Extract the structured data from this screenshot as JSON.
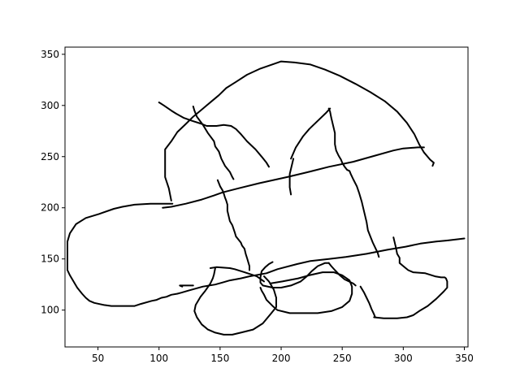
{
  "chart_data": {
    "type": "line",
    "title": "",
    "xlabel": "",
    "ylabel": "",
    "xlim": [
      23,
      353
    ],
    "ylim": [
      64,
      357
    ],
    "xticks": [
      50,
      100,
      150,
      200,
      250,
      300,
      350
    ],
    "yticks": [
      100,
      150,
      200,
      250,
      300,
      350
    ],
    "xtick_labels": [
      "50",
      "100",
      "150",
      "200",
      "250",
      "300",
      "350"
    ],
    "ytick_labels": [
      "100",
      "150",
      "200",
      "250",
      "300",
      "350"
    ],
    "grid": false,
    "line_color": "#000000",
    "series": [
      {
        "points": [
          [
            110,
            207
          ],
          [
            108,
            219
          ],
          [
            105,
            230
          ],
          [
            105,
            243
          ],
          [
            105,
            257
          ],
          [
            110,
            265
          ],
          [
            115,
            274
          ],
          [
            122,
            282
          ],
          [
            128,
            289
          ],
          [
            136,
            297
          ],
          [
            143,
            304
          ],
          [
            149,
            310
          ],
          [
            155,
            317
          ],
          [
            163,
            323
          ],
          [
            172,
            330
          ],
          [
            183,
            336
          ],
          [
            195,
            341
          ],
          [
            200,
            343
          ],
          [
            211,
            342
          ],
          [
            224,
            340
          ],
          [
            236,
            335
          ],
          [
            248,
            329
          ],
          [
            261,
            321
          ],
          [
            273,
            313
          ],
          [
            285,
            304
          ],
          [
            295,
            294
          ],
          [
            303,
            283
          ],
          [
            309,
            272
          ],
          [
            313,
            262
          ],
          [
            317,
            254
          ],
          [
            322,
            247
          ],
          [
            325,
            244
          ],
          [
            324,
            241
          ]
        ]
      },
      {
        "points": [
          [
            103,
            200
          ],
          [
            110,
            201
          ],
          [
            122,
            204
          ],
          [
            135,
            208
          ],
          [
            145,
            212
          ],
          [
            152,
            215
          ],
          [
            165,
            219
          ],
          [
            182,
            224
          ],
          [
            205,
            230
          ],
          [
            219,
            234
          ],
          [
            239,
            240
          ],
          [
            259,
            245
          ],
          [
            277,
            251
          ],
          [
            292,
            256
          ],
          [
            300,
            258
          ],
          [
            312,
            259
          ],
          [
            317,
            259
          ]
        ]
      },
      {
        "points": [
          [
            111,
            204
          ],
          [
            101,
            204
          ],
          [
            93,
            204
          ],
          [
            80,
            203
          ],
          [
            70,
            201
          ],
          [
            63,
            199
          ],
          [
            51,
            194
          ],
          [
            40,
            190
          ],
          [
            32,
            184
          ],
          [
            27,
            175
          ],
          [
            25,
            167
          ],
          [
            25,
            155
          ],
          [
            25,
            145
          ],
          [
            25,
            139
          ],
          [
            27,
            134
          ],
          [
            30,
            128
          ],
          [
            33,
            122
          ],
          [
            37,
            116
          ],
          [
            40,
            112
          ],
          [
            43,
            109
          ],
          [
            47,
            107
          ],
          [
            55,
            105
          ],
          [
            61,
            104
          ],
          [
            67,
            104
          ],
          [
            73,
            104
          ],
          [
            80,
            104
          ],
          [
            85,
            106
          ],
          [
            94,
            109
          ],
          [
            98,
            110
          ],
          [
            102,
            112
          ],
          [
            106,
            113
          ],
          [
            110,
            115
          ],
          [
            115,
            116
          ],
          [
            118,
            117
          ],
          [
            124,
            119
          ],
          [
            130,
            121
          ],
          [
            136,
            123
          ],
          [
            146,
            125
          ],
          [
            152,
            127
          ],
          [
            158,
            129
          ],
          [
            167,
            131
          ],
          [
            174,
            133
          ],
          [
            188,
            136
          ],
          [
            197,
            140
          ],
          [
            213,
            145
          ],
          [
            224,
            148
          ],
          [
            239,
            150
          ],
          [
            253,
            152
          ],
          [
            270,
            155
          ],
          [
            287,
            159
          ],
          [
            302,
            162
          ],
          [
            314,
            165
          ],
          [
            327,
            167
          ],
          [
            336,
            168
          ],
          [
            343,
            169
          ],
          [
            350,
            170
          ]
        ]
      },
      {
        "points": [
          [
            119,
            123
          ],
          [
            117,
            124
          ],
          [
            128,
            124
          ]
        ]
      },
      {
        "points": [
          [
            142,
            141
          ],
          [
            147,
            142
          ],
          [
            158,
            141
          ],
          [
            162,
            140
          ],
          [
            170,
            137
          ],
          [
            175,
            135
          ],
          [
            180,
            133
          ],
          [
            186,
            128
          ]
        ]
      },
      {
        "points": [
          [
            186,
            133
          ],
          [
            190,
            128
          ],
          [
            194,
            120
          ],
          [
            196,
            112
          ],
          [
            196,
            103
          ],
          [
            192,
            97
          ],
          [
            185,
            87
          ],
          [
            177,
            81
          ],
          [
            167,
            78
          ],
          [
            160,
            76
          ],
          [
            153,
            76
          ],
          [
            146,
            78
          ],
          [
            140,
            81
          ],
          [
            135,
            86
          ],
          [
            131,
            93
          ],
          [
            129,
            99
          ],
          [
            130,
            105
          ],
          [
            134,
            113
          ],
          [
            138,
            119
          ],
          [
            142,
            126
          ],
          [
            144,
            131
          ],
          [
            145,
            135
          ],
          [
            146,
            141
          ]
        ]
      },
      {
        "points": [
          [
            191,
            126
          ],
          [
            201,
            128
          ],
          [
            214,
            131
          ],
          [
            223,
            134
          ],
          [
            234,
            137
          ],
          [
            243,
            137
          ],
          [
            250,
            134
          ],
          [
            256,
            129
          ],
          [
            258,
            123
          ],
          [
            258,
            116
          ],
          [
            256,
            109
          ],
          [
            250,
            103
          ],
          [
            241,
            99
          ],
          [
            230,
            97
          ],
          [
            218,
            97
          ],
          [
            207,
            97
          ],
          [
            197,
            100
          ],
          [
            193,
            104
          ],
          [
            188,
            110
          ],
          [
            186,
            115
          ],
          [
            184,
            119
          ],
          [
            183,
            122
          ]
        ]
      },
      {
        "points": [
          [
            292,
            171
          ],
          [
            294,
            161
          ],
          [
            295,
            155
          ],
          [
            297,
            151
          ],
          [
            297,
            146
          ],
          [
            300,
            143
          ],
          [
            304,
            139
          ],
          [
            308,
            137
          ],
          [
            318,
            136
          ],
          [
            326,
            133
          ],
          [
            331,
            132
          ],
          [
            334,
            132
          ],
          [
            335,
            131
          ],
          [
            336,
            128
          ],
          [
            336,
            122
          ],
          [
            333,
            118
          ],
          [
            327,
            111
          ],
          [
            320,
            104
          ],
          [
            313,
            99
          ],
          [
            308,
            95
          ],
          [
            303,
            93
          ],
          [
            295,
            92
          ],
          [
            289,
            92
          ],
          [
            284,
            92
          ],
          [
            276,
            93
          ]
        ]
      },
      {
        "points": [
          [
            277,
            93
          ],
          [
            276,
            96
          ],
          [
            274,
            101
          ],
          [
            272,
            107
          ],
          [
            270,
            112
          ],
          [
            268,
            117
          ],
          [
            265,
            123
          ]
        ]
      },
      {
        "points": [
          [
            261,
            124
          ],
          [
            259,
            126
          ],
          [
            252,
            130
          ],
          [
            248,
            134
          ],
          [
            244,
            139
          ],
          [
            241,
            143
          ],
          [
            239,
            146
          ]
        ]
      },
      {
        "points": [
          [
            239,
            146
          ],
          [
            236,
            146
          ],
          [
            230,
            143
          ],
          [
            225,
            138
          ],
          [
            221,
            133
          ],
          [
            216,
            128
          ],
          [
            208,
            124
          ],
          [
            200,
            122
          ],
          [
            193,
            122
          ],
          [
            185,
            124
          ],
          [
            183,
            127
          ],
          [
            183,
            132
          ],
          [
            184,
            138
          ],
          [
            187,
            142
          ],
          [
            190,
            145
          ],
          [
            193,
            147
          ]
        ]
      },
      {
        "points": [
          [
            161,
            228
          ],
          [
            160,
            230
          ],
          [
            158,
            235
          ],
          [
            154,
            241
          ],
          [
            151,
            248
          ],
          [
            149,
            255
          ],
          [
            146,
            260
          ],
          [
            145,
            265
          ],
          [
            140,
            273
          ],
          [
            136,
            281
          ],
          [
            131,
            289
          ],
          [
            129,
            295
          ],
          [
            128,
            299
          ]
        ]
      },
      {
        "points": [
          [
            100,
            303
          ],
          [
            104,
            300
          ],
          [
            110,
            295
          ],
          [
            114,
            292
          ],
          [
            120,
            288
          ],
          [
            127,
            285
          ],
          [
            135,
            282
          ],
          [
            139,
            280
          ],
          [
            147,
            280
          ],
          [
            153,
            281
          ],
          [
            159,
            280
          ],
          [
            163,
            277
          ],
          [
            167,
            272
          ],
          [
            172,
            265
          ],
          [
            179,
            257
          ],
          [
            184,
            250
          ],
          [
            188,
            244
          ],
          [
            190,
            240
          ]
        ]
      },
      {
        "points": [
          [
            148,
            227
          ],
          [
            149,
            224
          ],
          [
            150,
            221
          ],
          [
            152,
            217
          ],
          [
            153,
            214
          ],
          [
            154,
            210
          ],
          [
            155,
            207
          ],
          [
            156,
            203
          ],
          [
            156,
            197
          ],
          [
            157,
            192
          ],
          [
            158,
            187
          ],
          [
            160,
            183
          ],
          [
            162,
            176
          ],
          [
            163,
            172
          ],
          [
            165,
            169
          ],
          [
            167,
            166
          ],
          [
            168,
            163
          ],
          [
            170,
            160
          ],
          [
            171,
            155
          ],
          [
            172,
            151
          ],
          [
            173,
            147
          ],
          [
            174,
            143
          ],
          [
            174,
            139
          ]
        ]
      },
      {
        "points": [
          [
            208,
            213
          ],
          [
            207,
            220
          ],
          [
            207,
            226
          ],
          [
            207,
            233
          ],
          [
            208,
            238
          ],
          [
            209,
            243
          ],
          [
            210,
            248
          ]
        ]
      },
      {
        "points": [
          [
            208,
            248
          ],
          [
            212,
            259
          ],
          [
            218,
            270
          ],
          [
            223,
            277
          ],
          [
            230,
            285
          ],
          [
            237,
            293
          ],
          [
            240,
            297
          ]
        ]
      },
      {
        "points": [
          [
            239,
            297
          ],
          [
            240,
            294
          ],
          [
            241,
            288
          ],
          [
            242,
            283
          ],
          [
            243,
            278
          ],
          [
            244,
            273
          ],
          [
            244,
            268
          ],
          [
            244,
            262
          ],
          [
            245,
            256
          ],
          [
            247,
            251
          ],
          [
            249,
            247
          ],
          [
            250,
            244
          ],
          [
            252,
            240
          ],
          [
            254,
            237
          ],
          [
            256,
            236
          ],
          [
            257,
            233
          ],
          [
            259,
            228
          ],
          [
            262,
            221
          ],
          [
            264,
            214
          ],
          [
            266,
            206
          ],
          [
            268,
            196
          ],
          [
            270,
            186
          ],
          [
            271,
            178
          ],
          [
            273,
            172
          ],
          [
            275,
            166
          ],
          [
            277,
            161
          ],
          [
            279,
            156
          ],
          [
            280,
            152
          ]
        ]
      }
    ]
  }
}
